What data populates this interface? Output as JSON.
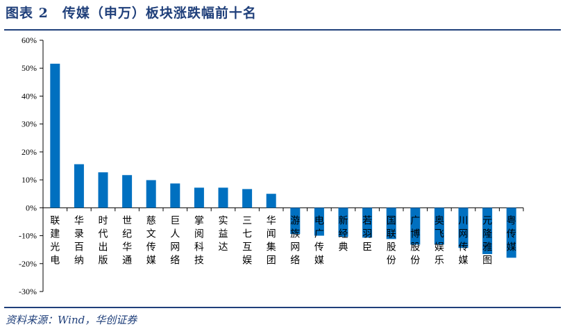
{
  "title": "图表 2　传媒（申万）板块涨跌幅前十名",
  "source": "资料来源：Wind，华创证券",
  "chart_data": {
    "type": "bar",
    "categories": [
      "联建光电",
      "华录百纳",
      "时代出版",
      "世纪华通",
      "慈文传媒",
      "巨人网络",
      "掌阅科技",
      "实益达",
      "三七互娱",
      "华闻集团",
      "游族网络",
      "电广传媒",
      "新经典",
      "若羽臣",
      "国联股份",
      "广博股份",
      "奥飞娱乐",
      "川网传媒",
      "元隆雅图",
      "粤传媒"
    ],
    "values": [
      51.6,
      15.6,
      12.7,
      11.7,
      9.9,
      8.7,
      7.2,
      7.2,
      6.7,
      5.0,
      -9.4,
      -10.0,
      -10.4,
      -10.7,
      -11.2,
      -13.2,
      -13.2,
      -14.4,
      -16.6,
      -17.9
    ],
    "ylim": [
      -30,
      60
    ],
    "yticks": [
      "-30%",
      "-20%",
      "-10%",
      "0%",
      "10%",
      "20%",
      "30%",
      "40%",
      "50%",
      "60%"
    ],
    "bar_color": "#0070c0",
    "grid": false
  }
}
